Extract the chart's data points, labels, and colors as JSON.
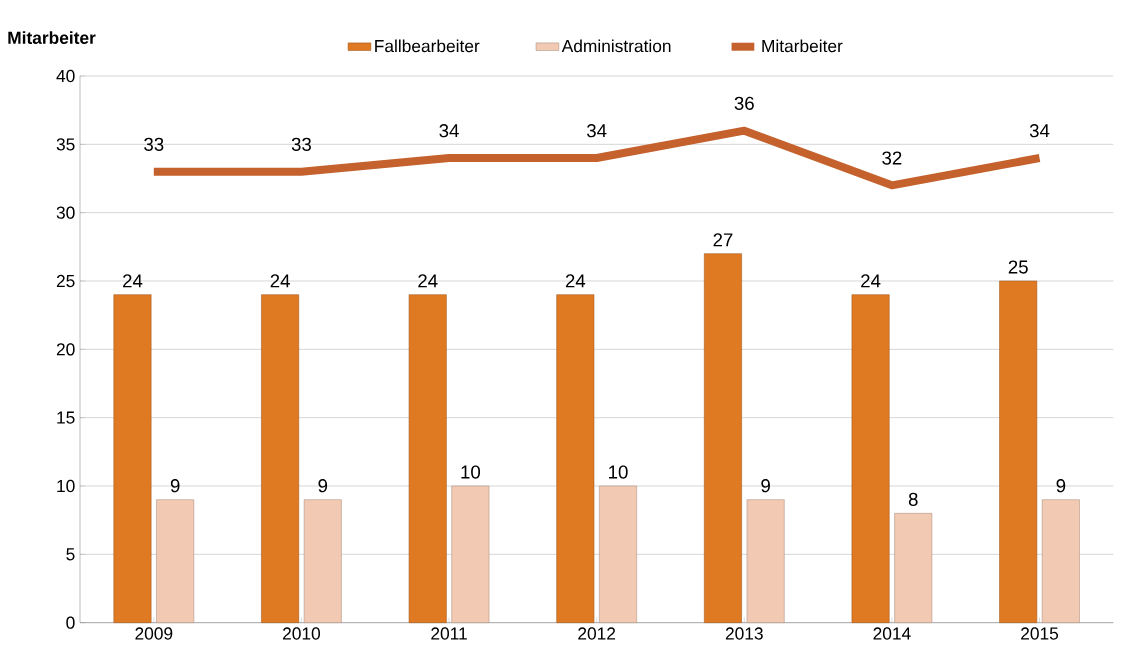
{
  "chart_data": {
    "type": "bar",
    "ylabel": "Mitarbeiter",
    "categories": [
      "2009",
      "2010",
      "2011",
      "2012",
      "2013",
      "2014",
      "2015"
    ],
    "series": [
      {
        "name": "Fallbearbeiter",
        "color": "#e07a22",
        "values": [
          24,
          24,
          24,
          24,
          27,
          24,
          25
        ]
      },
      {
        "name": "Administration",
        "color": "#f2c9b2",
        "values": [
          9,
          9,
          10,
          10,
          9,
          8,
          9
        ]
      },
      {
        "name": "Mitarbeiter",
        "type": "line",
        "color": "#c4612c",
        "values": [
          33,
          33,
          34,
          34,
          36,
          32,
          34
        ]
      }
    ],
    "ylim": [
      0,
      40
    ],
    "yticks": [
      0,
      5,
      10,
      15,
      20,
      25,
      30,
      35,
      40
    ],
    "grid": "y",
    "legend": "top",
    "data_labels": true,
    "marker": "none",
    "line_style": "solid"
  }
}
